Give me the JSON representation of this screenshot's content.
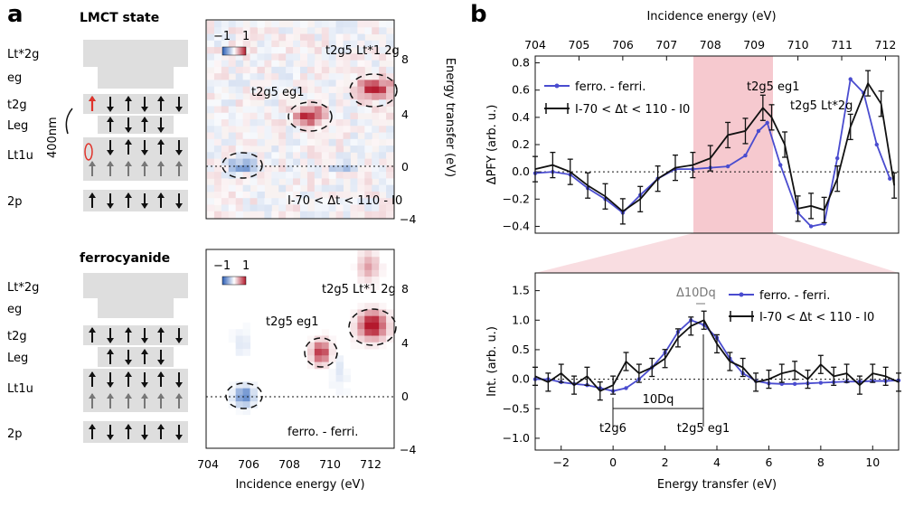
{
  "figure": {
    "panel_a": {
      "letter": "a",
      "top_title": "LMCT state",
      "bottom_title": "ferrocyanide",
      "level_labels": [
        "Lt*2g",
        "eg",
        "t2g",
        "Leg",
        "Lt1u",
        "2p"
      ],
      "pump_label": "400nm",
      "top_map": {
        "colorbar_min": "−1",
        "colorbar_max": "1",
        "annotation_a": "t2g5 eg1",
        "annotation_b": "t2g5 Lt*1 2g",
        "difference_label": "I-70 < Δt < 110 - I0"
      },
      "bottom_map": {
        "colorbar_min": "−1",
        "colorbar_max": "1",
        "annotation_a": "t2g5 eg1",
        "annotation_b": "t2g5 Lt*1 2g",
        "difference_label": "ferro. - ferri."
      },
      "xlabel": "Incidence energy (eV)",
      "ylabel": "Energy transfer (eV)",
      "x_ticks": [
        "704",
        "706",
        "708",
        "710",
        "712"
      ],
      "y_ticks": [
        "−4",
        "0",
        "4",
        "8"
      ]
    },
    "panel_b": {
      "letter": "b",
      "top_xlabel": "Incidence energy (eV)",
      "top_x_ticks": [
        "704",
        "705",
        "706",
        "707",
        "708",
        "709",
        "710",
        "711",
        "712"
      ],
      "top_ylabel": "ΔPFY (arb. u.)",
      "top_y_ticks": [
        "−0.4",
        "−0.3",
        "−0.2",
        "−0.1",
        "0.0",
        "0.1",
        "0.2",
        "0.3",
        "0.4",
        "0.5",
        "0.6",
        "0.7",
        "0.8"
      ],
      "top_annotation_a": "t2g5 eg1",
      "top_annotation_b": "t2g5 Lt*2g",
      "legend_blue": "ferro. - ferri.",
      "legend_black": "I-70 < Δt < 110 - I0",
      "bottom_xlabel": "Energy transfer (eV)",
      "bottom_x_ticks": [
        "−2",
        "0",
        "2",
        "4",
        "6",
        "8",
        "10"
      ],
      "bottom_ylabel": "Int. (arb. u.)",
      "bottom_y_ticks": [
        "−1.0",
        "−0.5",
        "0.0",
        "0.5",
        "1.0",
        "1.5"
      ],
      "dq_small": "Δ10Dq",
      "dq_big": "10Dq",
      "marker_left": "t2g6",
      "marker_right": "t2g5 eg1"
    },
    "colors": {
      "blue": "#4a4ccf",
      "black": "#111111",
      "pink": "#f6c9cf",
      "level_box": "#dedede",
      "red": "#e0332b"
    }
  },
  "chart_data": [
    {
      "type": "line",
      "title": "",
      "xlabel": "Incidence energy (eV)",
      "ylabel": "ΔPFY (arb. u.)",
      "xlim": [
        704,
        712.3
      ],
      "ylim": [
        -0.45,
        0.85
      ],
      "series": [
        {
          "name": "ferro. - ferri.",
          "x": [
            704.0,
            704.4,
            704.8,
            705.2,
            705.6,
            706.0,
            706.4,
            706.8,
            707.2,
            707.6,
            708.0,
            708.4,
            708.8,
            709.1,
            709.3,
            709.6,
            710.0,
            710.3,
            710.6,
            710.9,
            711.2,
            711.5,
            711.8,
            712.1
          ],
          "y": [
            -0.01,
            0.0,
            -0.02,
            -0.12,
            -0.2,
            -0.3,
            -0.17,
            -0.05,
            0.02,
            0.02,
            0.03,
            0.04,
            0.12,
            0.3,
            0.36,
            0.05,
            -0.3,
            -0.4,
            -0.38,
            0.1,
            0.68,
            0.58,
            0.2,
            -0.05
          ]
        },
        {
          "name": "I-70 < Δt < 110 - I0",
          "x": [
            704.0,
            704.4,
            704.8,
            705.2,
            705.6,
            706.0,
            706.4,
            706.8,
            707.2,
            707.6,
            708.0,
            708.4,
            708.8,
            709.2,
            709.4,
            709.7,
            710.0,
            710.3,
            710.6,
            710.9,
            711.2,
            711.6,
            711.9,
            712.2
          ],
          "y": [
            0.02,
            0.05,
            0.0,
            -0.1,
            -0.18,
            -0.29,
            -0.2,
            -0.05,
            0.03,
            0.05,
            0.1,
            0.27,
            0.3,
            0.47,
            0.4,
            0.2,
            -0.27,
            -0.25,
            -0.28,
            -0.05,
            0.33,
            0.65,
            0.5,
            -0.1
          ]
        }
      ]
    },
    {
      "type": "line",
      "title": "",
      "xlabel": "Energy transfer (eV)",
      "ylabel": "Int. (arb. u.)",
      "xlim": [
        -3,
        11
      ],
      "ylim": [
        -1.2,
        1.8
      ],
      "series": [
        {
          "name": "ferro. - ferri.",
          "x": [
            -3,
            -2.5,
            -2,
            -1.5,
            -1,
            -0.5,
            0,
            0.5,
            1,
            1.5,
            2,
            2.5,
            3,
            3.5,
            4,
            4.5,
            5,
            5.5,
            6,
            6.5,
            7,
            7.5,
            8,
            8.5,
            9,
            9.5,
            10,
            10.5,
            11
          ],
          "y": [
            0.0,
            0.0,
            -0.05,
            -0.08,
            -0.1,
            -0.15,
            -0.2,
            -0.15,
            0.0,
            0.2,
            0.45,
            0.8,
            1.0,
            0.92,
            0.7,
            0.35,
            0.1,
            -0.03,
            -0.07,
            -0.08,
            -0.08,
            -0.07,
            -0.06,
            -0.05,
            -0.04,
            -0.04,
            -0.03,
            -0.03,
            -0.02
          ]
        },
        {
          "name": "I-70 < Δt < 110 - I0",
          "x": [
            -3,
            -2.5,
            -2,
            -1.5,
            -1,
            -0.5,
            0,
            0.5,
            1,
            1.5,
            2,
            2.5,
            3,
            3.5,
            4,
            4.5,
            5,
            5.5,
            6,
            6.5,
            7,
            7.5,
            8,
            8.5,
            9,
            9.5,
            10,
            10.5,
            11
          ],
          "y": [
            0.05,
            -0.05,
            0.1,
            -0.1,
            0.05,
            -0.2,
            -0.1,
            0.3,
            0.1,
            0.2,
            0.35,
            0.7,
            0.9,
            1.0,
            0.6,
            0.3,
            0.2,
            -0.05,
            0.0,
            0.1,
            0.15,
            0.0,
            0.25,
            0.05,
            0.1,
            -0.1,
            0.1,
            0.05,
            -0.05
          ]
        }
      ]
    }
  ]
}
